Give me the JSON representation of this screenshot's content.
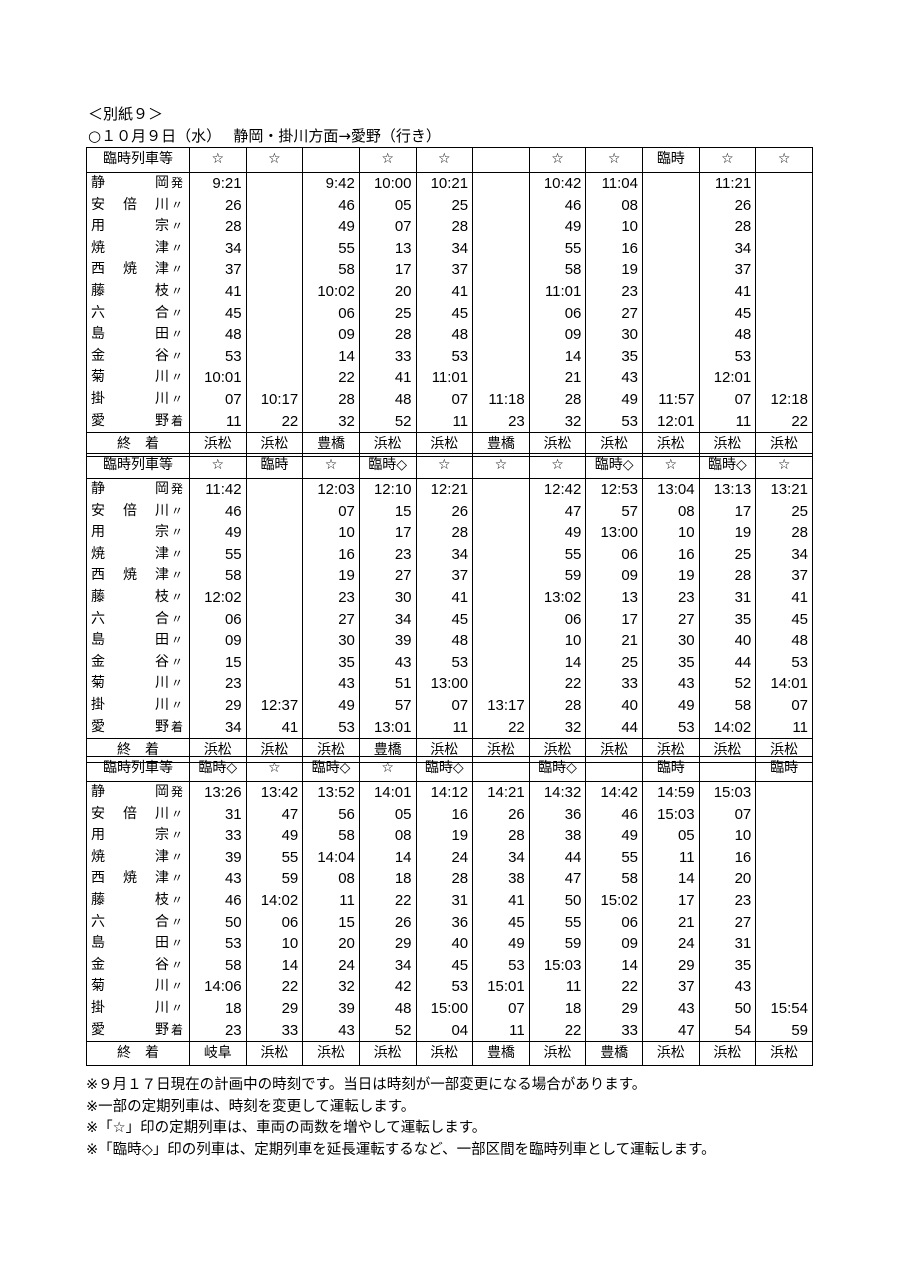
{
  "heading": "＜別紙９＞",
  "subheading": "○１０月９日（水）　 静岡・掛川方面→愛野（行き）",
  "type_label": "臨時列車等",
  "end_label": "終　着",
  "stations": [
    {
      "name": "静岡",
      "mark": "発"
    },
    {
      "name": "安倍川",
      "mark": "〃"
    },
    {
      "name": "用宗",
      "mark": "〃"
    },
    {
      "name": "焼津",
      "mark": "〃"
    },
    {
      "name": "西焼津",
      "mark": "〃"
    },
    {
      "name": "藤枝",
      "mark": "〃"
    },
    {
      "name": "六合",
      "mark": "〃"
    },
    {
      "name": "島田",
      "mark": "〃"
    },
    {
      "name": "金谷",
      "mark": "〃"
    },
    {
      "name": "菊川",
      "mark": "〃"
    },
    {
      "name": "掛川",
      "mark": "〃"
    },
    {
      "name": "愛野",
      "mark": "着"
    }
  ],
  "blocks": [
    {
      "types": [
        "☆",
        "☆",
        "",
        "☆",
        "☆",
        "",
        "☆",
        "☆",
        "臨時",
        "☆",
        "☆"
      ],
      "times": [
        [
          "9:21",
          "26",
          "28",
          "34",
          "37",
          "41",
          "45",
          "48",
          "53",
          "10:01",
          "07",
          "11"
        ],
        [
          "",
          "",
          "",
          "",
          "",
          "",
          "",
          "",
          "",
          "",
          "10:17",
          "22"
        ],
        [
          "9:42",
          "46",
          "49",
          "55",
          "58",
          "10:02",
          "06",
          "09",
          "14",
          "22",
          "28",
          "32"
        ],
        [
          "10:00",
          "05",
          "07",
          "13",
          "17",
          "20",
          "25",
          "28",
          "33",
          "41",
          "48",
          "52"
        ],
        [
          "10:21",
          "25",
          "28",
          "34",
          "37",
          "41",
          "45",
          "48",
          "53",
          "11:01",
          "07",
          "11"
        ],
        [
          "",
          "",
          "",
          "",
          "",
          "",
          "",
          "",
          "",
          "",
          "11:18",
          "23"
        ],
        [
          "10:42",
          "46",
          "49",
          "55",
          "58",
          "11:01",
          "06",
          "09",
          "14",
          "21",
          "28",
          "32"
        ],
        [
          "11:04",
          "08",
          "10",
          "16",
          "19",
          "23",
          "27",
          "30",
          "35",
          "43",
          "49",
          "53"
        ],
        [
          "",
          "",
          "",
          "",
          "",
          "",
          "",
          "",
          "",
          "",
          "11:57",
          "12:01"
        ],
        [
          "11:21",
          "26",
          "28",
          "34",
          "37",
          "41",
          "45",
          "48",
          "53",
          "12:01",
          "07",
          "11"
        ],
        [
          "",
          "",
          "",
          "",
          "",
          "",
          "",
          "",
          "",
          "",
          "12:18",
          "22"
        ]
      ],
      "dest": [
        "浜松",
        "浜松",
        "豊橋",
        "浜松",
        "浜松",
        "豊橋",
        "浜松",
        "浜松",
        "浜松",
        "浜松",
        "浜松"
      ]
    },
    {
      "types": [
        "☆",
        "臨時",
        "☆",
        "臨時◇",
        "☆",
        "☆",
        "☆",
        "臨時◇",
        "☆",
        "臨時◇",
        "☆"
      ],
      "times": [
        [
          "11:42",
          "46",
          "49",
          "55",
          "58",
          "12:02",
          "06",
          "09",
          "15",
          "23",
          "29",
          "34"
        ],
        [
          "",
          "",
          "",
          "",
          "",
          "",
          "",
          "",
          "",
          "",
          "12:37",
          "41"
        ],
        [
          "12:03",
          "07",
          "10",
          "16",
          "19",
          "23",
          "27",
          "30",
          "35",
          "43",
          "49",
          "53"
        ],
        [
          "12:10",
          "15",
          "17",
          "23",
          "27",
          "30",
          "34",
          "39",
          "43",
          "51",
          "57",
          "13:01"
        ],
        [
          "12:21",
          "26",
          "28",
          "34",
          "37",
          "41",
          "45",
          "48",
          "53",
          "13:00",
          "07",
          "11"
        ],
        [
          "",
          "",
          "",
          "",
          "",
          "",
          "",
          "",
          "",
          "",
          "13:17",
          "22"
        ],
        [
          "12:42",
          "47",
          "49",
          "55",
          "59",
          "13:02",
          "06",
          "10",
          "14",
          "22",
          "28",
          "32"
        ],
        [
          "12:53",
          "57",
          "13:00",
          "06",
          "09",
          "13",
          "17",
          "21",
          "25",
          "33",
          "40",
          "44"
        ],
        [
          "13:04",
          "08",
          "10",
          "16",
          "19",
          "23",
          "27",
          "30",
          "35",
          "43",
          "49",
          "53"
        ],
        [
          "13:13",
          "17",
          "19",
          "25",
          "28",
          "31",
          "35",
          "40",
          "44",
          "52",
          "58",
          "14:02"
        ],
        [
          "13:21",
          "25",
          "28",
          "34",
          "37",
          "41",
          "45",
          "48",
          "53",
          "14:01",
          "07",
          "11"
        ]
      ],
      "dest": [
        "浜松",
        "浜松",
        "浜松",
        "豊橋",
        "浜松",
        "浜松",
        "浜松",
        "浜松",
        "浜松",
        "浜松",
        "浜松"
      ]
    },
    {
      "types": [
        "臨時◇",
        "☆",
        "臨時◇",
        "☆",
        "臨時◇",
        "",
        "臨時◇",
        "",
        "臨時",
        "",
        "臨時"
      ],
      "times": [
        [
          "13:26",
          "31",
          "33",
          "39",
          "43",
          "46",
          "50",
          "53",
          "58",
          "14:06",
          "18",
          "23"
        ],
        [
          "13:42",
          "47",
          "49",
          "55",
          "59",
          "14:02",
          "06",
          "10",
          "14",
          "22",
          "29",
          "33"
        ],
        [
          "13:52",
          "56",
          "58",
          "14:04",
          "08",
          "11",
          "15",
          "20",
          "24",
          "32",
          "39",
          "43"
        ],
        [
          "14:01",
          "05",
          "08",
          "14",
          "18",
          "22",
          "26",
          "29",
          "34",
          "42",
          "48",
          "52"
        ],
        [
          "14:12",
          "16",
          "19",
          "24",
          "28",
          "31",
          "36",
          "40",
          "45",
          "53",
          "15:00",
          "04"
        ],
        [
          "14:21",
          "26",
          "28",
          "34",
          "38",
          "41",
          "45",
          "49",
          "53",
          "15:01",
          "07",
          "11"
        ],
        [
          "14:32",
          "36",
          "38",
          "44",
          "47",
          "50",
          "55",
          "59",
          "15:03",
          "11",
          "18",
          "22"
        ],
        [
          "14:42",
          "46",
          "49",
          "55",
          "58",
          "15:02",
          "06",
          "09",
          "14",
          "22",
          "29",
          "33"
        ],
        [
          "14:59",
          "15:03",
          "05",
          "11",
          "14",
          "17",
          "21",
          "24",
          "29",
          "37",
          "43",
          "47"
        ],
        [
          "15:03",
          "07",
          "10",
          "16",
          "20",
          "23",
          "27",
          "31",
          "35",
          "43",
          "50",
          "54"
        ],
        [
          "",
          "",
          "",
          "",
          "",
          "",
          "",
          "",
          "",
          "",
          "15:54",
          "59"
        ]
      ],
      "dest": [
        "岐阜",
        "浜松",
        "浜松",
        "浜松",
        "浜松",
        "豊橋",
        "浜松",
        "豊橋",
        "浜松",
        "浜松",
        "浜松"
      ]
    }
  ],
  "notes": [
    "※９月１７日現在の計画中の時刻です。当日は時刻が一部変更になる場合があります。",
    "※一部の定期列車は、時刻を変更して運転します。",
    "※「☆」印の定期列車は、車両の両数を増やして運転します。",
    "※「臨時◇」印の列車は、定期列車を延長運転するなど、一部区間を臨時列車として運転します。"
  ]
}
